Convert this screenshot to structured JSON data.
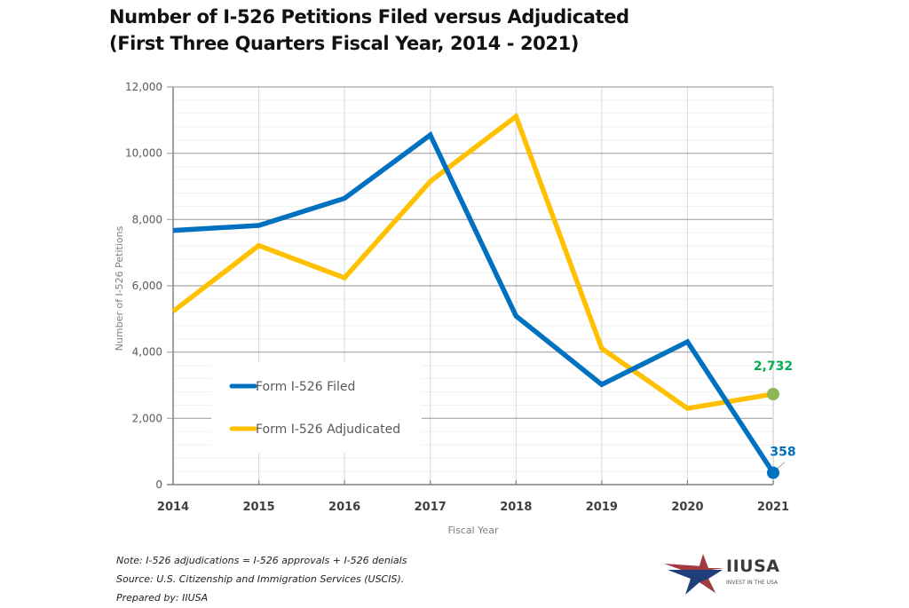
{
  "title_lines": [
    "Number of I-526 Petitions Filed versus Adjudicated",
    "(First Three Quarters Fiscal Year, 2014 - 2021)"
  ],
  "notes": [
    "Note: I-526 adjudications = I-526 approvals + I-526 denials",
    "Source: U.S. Citizenship and Immigration Services (USCIS).",
    "Prepared by: IIUSA"
  ],
  "logo": {
    "name": "IIUSA",
    "tagline": "INVEST IN THE USA"
  },
  "chart_data": {
    "type": "line",
    "title": "Number of I-526 Petitions Filed versus Adjudicated (First Three Quarters Fiscal Year, 2014 - 2021)",
    "xlabel": "Fiscal Year",
    "ylabel": "Number of I-526 Petitions",
    "x": [
      "2014",
      "2015",
      "2016",
      "2017",
      "2018",
      "2019",
      "2020",
      "2021"
    ],
    "ylim": [
      0,
      12000
    ],
    "yticks": [
      0,
      2000,
      4000,
      6000,
      8000,
      10000,
      12000
    ],
    "ytick_labels": [
      "0",
      "2,000",
      "4,000",
      "6,000",
      "8,000",
      "10,000",
      "12,000"
    ],
    "minor_ystep": 400,
    "grid": true,
    "legend_position": "lower-left",
    "series": [
      {
        "name": "Form I-526 Filed",
        "color": "#0070C0",
        "values": [
          7670,
          7820,
          8640,
          10550,
          5090,
          3020,
          4310,
          358
        ],
        "end_label": "358",
        "end_label_color": "#0070C0",
        "end_marker_color": "#0070C0"
      },
      {
        "name": "Form I-526 Adjudicated",
        "color": "#FFC000",
        "values": [
          5230,
          7215,
          6240,
          9150,
          11110,
          4110,
          2300,
          2732
        ],
        "end_label": "2,732",
        "end_label_color": "#00B050",
        "end_marker_color": "#8DB654"
      }
    ]
  }
}
